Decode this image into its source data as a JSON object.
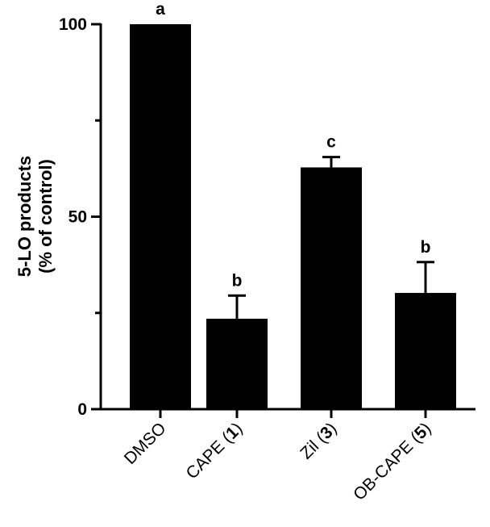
{
  "chart_data": {
    "type": "bar",
    "title": "",
    "ylabel_line1": "5-LO products",
    "ylabel_line2": "(% of control)",
    "xlabel": "",
    "ylim": [
      0,
      100
    ],
    "yticks": [
      0,
      50,
      100
    ],
    "grid": false,
    "bar_color": "#000000",
    "categories": [
      {
        "name": "DMSO",
        "compound_number": ""
      },
      {
        "name": "CAPE",
        "compound_number": "1"
      },
      {
        "name": "Zil",
        "compound_number": "3"
      },
      {
        "name": "OB-CAPE",
        "compound_number": "5"
      }
    ],
    "values": [
      100,
      23.5,
      62.8,
      30.2
    ],
    "errors": [
      0,
      6,
      2.7,
      8
    ],
    "significance_letters": [
      "a",
      "b",
      "c",
      "b"
    ]
  }
}
